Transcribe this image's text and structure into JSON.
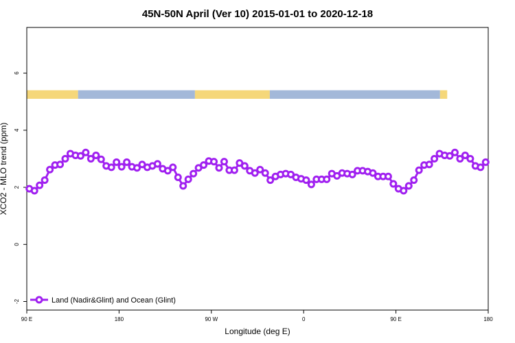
{
  "chart_data": {
    "type": "line",
    "title": "45N-50N April (Ver 10)   2015-01-01 to 2020-12-18",
    "xlabel": "Longitude (deg E)",
    "ylabel": "XCO2 - MLO trend (ppm)",
    "x_ticks": [
      {
        "value": 90,
        "label": "90 E"
      },
      {
        "value": 180,
        "label": "180"
      },
      {
        "value": 270,
        "label": "90 W"
      },
      {
        "value": 360,
        "label": "0"
      },
      {
        "value": 450,
        "label": "90 E"
      },
      {
        "value": 540,
        "label": "180"
      }
    ],
    "y_ticks": [
      {
        "value": -2,
        "label": "-2"
      },
      {
        "value": 0,
        "label": "0"
      },
      {
        "value": 2,
        "label": "2"
      },
      {
        "value": 4,
        "label": "4"
      },
      {
        "value": 6,
        "label": "6"
      }
    ],
    "xlim": [
      90,
      540
    ],
    "ylim": [
      -2.3,
      7.6
    ],
    "legend_position": "bottom-left",
    "series": [
      {
        "name": "Land (Nadir&Glint) and Ocean (Glint)",
        "color": "#a020f0",
        "x": [
          92.5,
          97.5,
          102.5,
          107.5,
          112.5,
          117.5,
          122.5,
          127.5,
          132.5,
          137.5,
          142.5,
          147.5,
          152.5,
          157.5,
          162.5,
          167.5,
          172.5,
          177.5,
          182.5,
          187.5,
          192.5,
          197.5,
          202.5,
          207.5,
          212.5,
          217.5,
          222.5,
          227.5,
          232.5,
          237.5,
          242.5,
          247.5,
          252.5,
          257.5,
          262.5,
          267.5,
          272.5,
          277.5,
          282.5,
          287.5,
          292.5,
          297.5,
          302.5,
          307.5,
          312.5,
          317.5,
          322.5,
          327.5,
          332.5,
          337.5,
          342.5,
          347.5,
          352.5,
          357.5,
          362.5,
          367.5,
          372.5,
          377.5,
          382.5,
          387.5,
          392.5,
          397.5,
          402.5,
          407.5,
          412.5,
          417.5,
          422.5,
          427.5,
          432.5,
          437.5,
          442.5,
          447.5,
          452.5,
          457.5,
          462.5,
          467.5,
          472.5,
          477.5,
          482.5,
          487.5,
          492.5,
          497.5,
          502.5,
          507.5,
          512.5,
          517.5,
          522.5,
          527.5,
          532.5,
          537.5
        ],
        "y": [
          1.95,
          1.88,
          2.07,
          2.25,
          2.62,
          2.78,
          2.8,
          3.0,
          3.18,
          3.12,
          3.1,
          3.22,
          3.0,
          3.12,
          2.98,
          2.75,
          2.7,
          2.88,
          2.72,
          2.88,
          2.72,
          2.68,
          2.8,
          2.7,
          2.75,
          2.82,
          2.65,
          2.58,
          2.7,
          2.35,
          2.05,
          2.28,
          2.48,
          2.68,
          2.78,
          2.92,
          2.9,
          2.68,
          2.9,
          2.6,
          2.6,
          2.85,
          2.75,
          2.58,
          2.5,
          2.62,
          2.5,
          2.25,
          2.38,
          2.45,
          2.48,
          2.45,
          2.35,
          2.3,
          2.25,
          2.1,
          2.28,
          2.28,
          2.28,
          2.48,
          2.4,
          2.5,
          2.48,
          2.45,
          2.58,
          2.58,
          2.55,
          2.5,
          2.38,
          2.38,
          2.38,
          2.12,
          1.95,
          1.88,
          2.05,
          2.25,
          2.6,
          2.78,
          2.8,
          3.0,
          3.18,
          3.12,
          3.1,
          3.22,
          3.0,
          3.12,
          3.0,
          2.75,
          2.7,
          2.88
        ]
      }
    ],
    "map_band": {
      "y_range": [
        5.1,
        5.4
      ],
      "land_color": "#f5d77a",
      "ocean_color": "#a3b8d9",
      "land_segments": [
        {
          "type": "land",
          "x": [
            90,
            140
          ]
        },
        {
          "type": "ocean",
          "x": [
            140,
            254
          ]
        },
        {
          "type": "land",
          "x": [
            254,
            327
          ]
        },
        {
          "type": "ocean",
          "x": [
            327,
            493
          ]
        },
        {
          "type": "land",
          "x": [
            493,
            500
          ]
        }
      ]
    }
  }
}
